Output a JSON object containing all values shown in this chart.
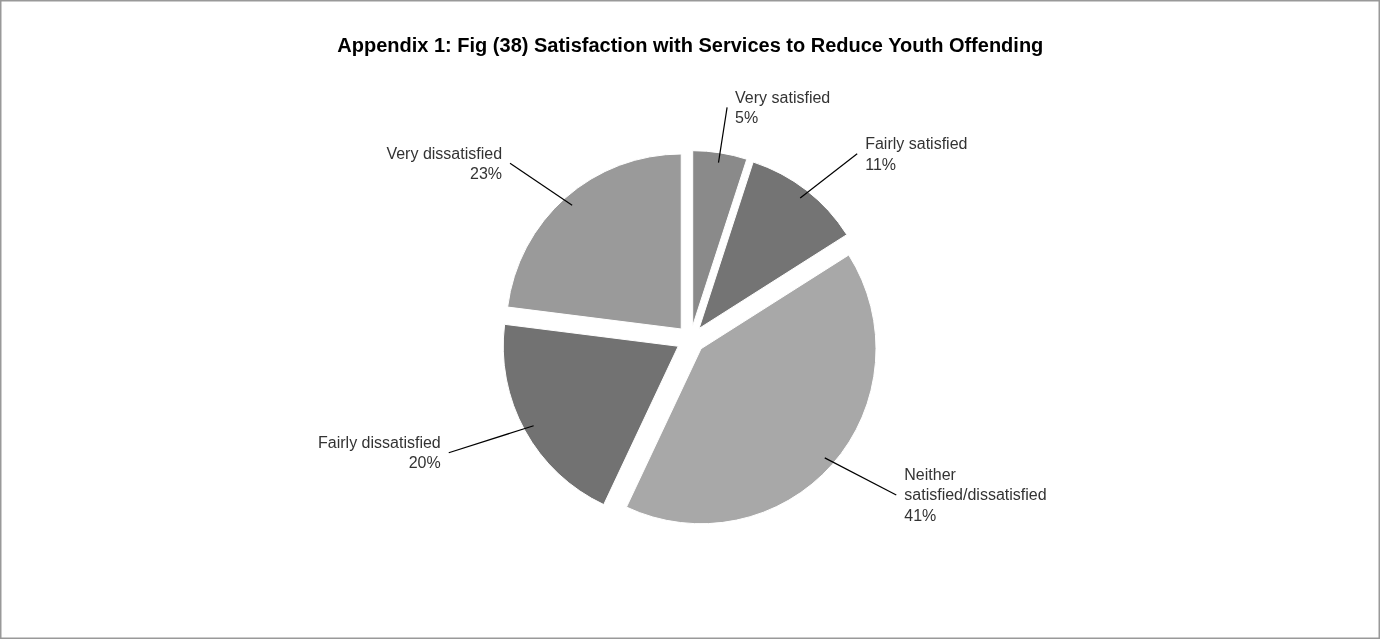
{
  "chart_data": {
    "type": "pie",
    "title": "Appendix 1: Fig (38) Satisfaction with Services to Reduce Youth Offending",
    "categories": [
      "Very satisfied",
      "Fairly satisfied",
      "Neither satisfied/dissatisfied",
      "Fairly dissatisfied",
      "Very dissatisfied"
    ],
    "values": [
      5,
      11,
      41,
      20,
      23
    ],
    "colors": [
      "#8a8a8a",
      "#747474",
      "#a8a8a8",
      "#727272",
      "#9a9a9a"
    ],
    "value_labels": [
      "5%",
      "11%",
      "41%",
      "20%",
      "23%"
    ]
  }
}
